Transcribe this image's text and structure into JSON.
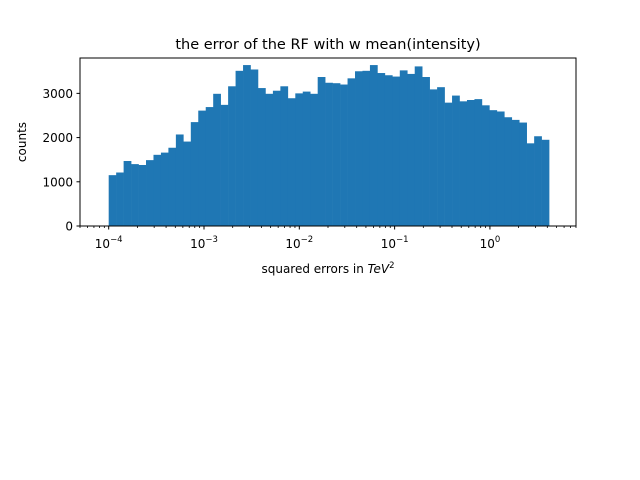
{
  "chart_data": {
    "type": "bar",
    "title": "the error of the RF with w mean(intensity)",
    "xlabel_prefix": "squared errors in ",
    "xlabel_math": "TeV",
    "xlabel_sup": "2",
    "ylabel": "counts",
    "x_scale": "log",
    "xlim": [
      5e-05,
      8
    ],
    "ylim": [
      0,
      3800
    ],
    "grid": false,
    "bar_color": "#1f77b4",
    "bin_range": [
      0.0001,
      5
    ],
    "bin_count": 60,
    "values": [
      1150,
      1210,
      1470,
      1400,
      1380,
      1490,
      1610,
      1660,
      1770,
      2070,
      1910,
      2350,
      2610,
      2690,
      2990,
      2740,
      3160,
      3510,
      3640,
      3540,
      3120,
      2990,
      3060,
      3160,
      2890,
      3000,
      3040,
      2990,
      3370,
      3240,
      3230,
      3200,
      3340,
      3500,
      3510,
      3640,
      3460,
      3410,
      3380,
      3520,
      3440,
      3610,
      3370,
      3090,
      3140,
      2790,
      2950,
      2820,
      2850,
      2870,
      2730,
      2620,
      2590,
      2460,
      2400,
      2340,
      1870,
      2030,
      1950
    ],
    "y_ticks": [
      {
        "value": 0,
        "label": "0"
      },
      {
        "value": 1000,
        "label": "1000"
      },
      {
        "value": 2000,
        "label": "2000"
      },
      {
        "value": 3000,
        "label": "3000"
      }
    ],
    "x_ticks": [
      {
        "value": 0.0001,
        "base": "10",
        "exp": "−4"
      },
      {
        "value": 0.001,
        "base": "10",
        "exp": "−3"
      },
      {
        "value": 0.01,
        "base": "10",
        "exp": "−2"
      },
      {
        "value": 0.1,
        "base": "10",
        "exp": "−1"
      },
      {
        "value": 1,
        "base": "10",
        "exp": "0"
      }
    ]
  }
}
